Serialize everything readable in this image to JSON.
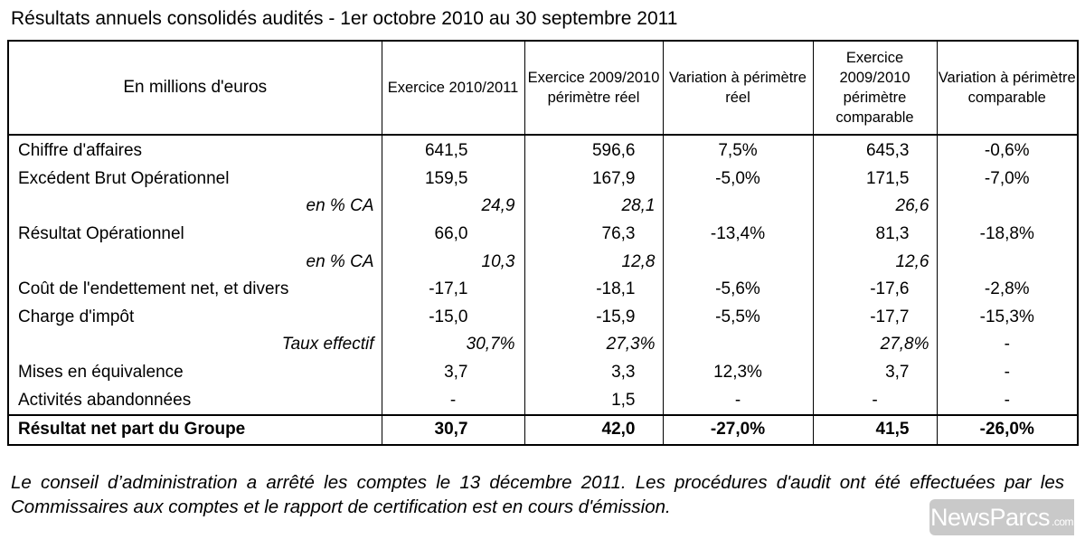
{
  "title": "Résultats annuels consolidés audités - 1er octobre 2010 au 30 septembre 2011",
  "table": {
    "headers": [
      "En millions d'euros",
      "Exercice 2010/2011",
      "Exercice 2009/2010 périmètre réel",
      "Variation à périmètre réel",
      "Exercice 2009/2010 périmètre comparable",
      "Variation à périmètre comparable"
    ],
    "rows": [
      {
        "label": "Chiffre d'affaires",
        "c1": "641,5",
        "c2": "596,6",
        "c3": "7,5%",
        "c4": "645,3",
        "c5": "-0,6%"
      },
      {
        "label": "Excédent Brut Opérationnel",
        "c1": "159,5",
        "c2": "167,9",
        "c3": "-5,0%",
        "c4": "171,5",
        "c5": "-7,0%"
      },
      {
        "label": "en % CA",
        "c1": "24,9",
        "c2": "28,1",
        "c3": "",
        "c4": "26,6",
        "c5": ""
      },
      {
        "label": "Résultat Opérationnel",
        "c1": "66,0",
        "c2": "76,3",
        "c3": "-13,4%",
        "c4": "81,3",
        "c5": "-18,8%"
      },
      {
        "label": "en % CA",
        "c1": "10,3",
        "c2": "12,8",
        "c3": "",
        "c4": "12,6",
        "c5": ""
      },
      {
        "label": "Coût de l'endettement net, et divers",
        "c1": "-17,1",
        "c2": "-18,1",
        "c3": "-5,6%",
        "c4": "-17,6",
        "c5": "-2,8%"
      },
      {
        "label": "Charge d'impôt",
        "c1": "-15,0",
        "c2": "-15,9",
        "c3": "-5,5%",
        "c4": "-17,7",
        "c5": "-15,3%"
      },
      {
        "label": "Taux effectif",
        "c1": "30,7%",
        "c2": "27,3%",
        "c3": "",
        "c4": "27,8%",
        "c5": "-"
      },
      {
        "label": "Mises en équivalence",
        "c1": "3,7",
        "c2": "3,3",
        "c3": "12,3%",
        "c4": "3,7",
        "c5": "-"
      },
      {
        "label": "Activités abandonnées",
        "c1": "-",
        "c2": "1,5",
        "c3": "-",
        "c4": "-",
        "c5": "-"
      },
      {
        "label": "Résultat net part du Groupe",
        "c1": "30,7",
        "c2": "42,0",
        "c3": "-27,0%",
        "c4": "41,5",
        "c5": "-26,0%"
      }
    ]
  },
  "footnote": "Le conseil d’administration a arrêté les comptes le 13 décembre 2011. Les procédures d'audit ont été effectuées par les Commissaires aux comptes et le rapport de certification est en cours d'émission.",
  "watermark": {
    "brand": "NewsParcs",
    "suffix": ".com"
  }
}
